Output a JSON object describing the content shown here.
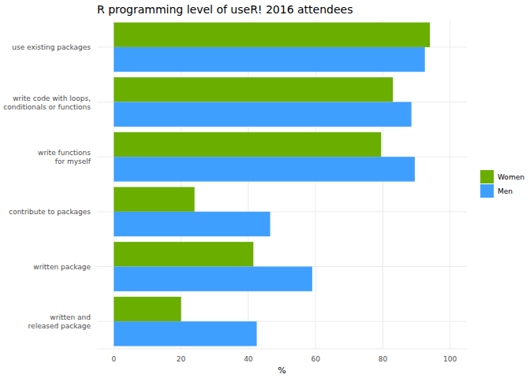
{
  "chart_data": {
    "type": "bar",
    "orientation": "horizontal",
    "title": "R programming level of useR! 2016 attendees",
    "x_label": "%",
    "categories": [
      "use existing packages",
      "write code with loops,\nconditionals or functions",
      "write functions\nfor myself",
      "contribute to packages",
      "written package",
      "written and\nreleased package"
    ],
    "series": [
      {
        "name": "Women",
        "color": "#6aae00",
        "values": [
          94,
          83,
          79.5,
          24,
          41.5,
          20
        ]
      },
      {
        "name": "Men",
        "color": "#3f9fff",
        "values": [
          92.5,
          88.5,
          89.5,
          46.5,
          59,
          42.5
        ]
      }
    ],
    "xlim": [
      -5,
      105
    ],
    "xticks": [
      0,
      20,
      40,
      60,
      80,
      100
    ],
    "grid": true,
    "legend": "right"
  }
}
